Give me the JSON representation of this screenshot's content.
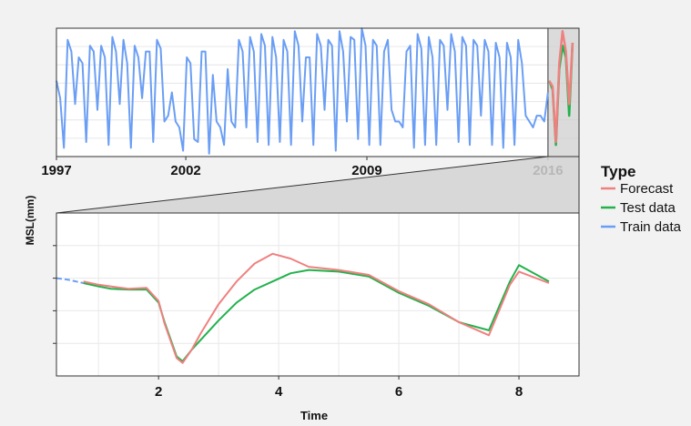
{
  "chart_data": [
    {
      "type": "line",
      "panel": "overview",
      "x_tick_labels": [
        "1997",
        "2002",
        "2009",
        "2016"
      ],
      "xlim": [
        1997,
        2017.2
      ],
      "ylim": [
        -1.1,
        1.1
      ],
      "highlight_range": [
        2016.0,
        2017.2
      ],
      "grid": true,
      "series": [
        {
          "name": "Train data",
          "color": "#6a9ef5",
          "x_start": 1997.0,
          "x_end": 2016.0,
          "values": [
            0.2,
            -0.1,
            -0.95,
            0.9,
            0.7,
            -0.2,
            0.6,
            0.5,
            -0.85,
            0.8,
            0.7,
            -0.3,
            0.8,
            0.6,
            -0.9,
            0.95,
            0.7,
            -0.2,
            0.9,
            0.5,
            -0.95,
            0.8,
            0.6,
            -0.1,
            0.7,
            0.7,
            -0.85,
            0.9,
            0.75,
            -0.5,
            -0.4,
            0.0,
            -0.5,
            -0.6,
            -1.0,
            0.6,
            0.5,
            -0.8,
            -0.85,
            0.7,
            0.7,
            -1.05,
            0.3,
            -0.5,
            -0.6,
            -0.9,
            0.4,
            -0.5,
            -0.6,
            0.9,
            0.7,
            -0.6,
            0.95,
            0.7,
            -0.85,
            1.0,
            0.8,
            -0.9,
            0.95,
            0.6,
            -0.85,
            0.9,
            0.7,
            -0.9,
            1.05,
            0.8,
            -0.5,
            0.6,
            0.6,
            -0.9,
            1.0,
            0.8,
            -0.3,
            0.9,
            0.8,
            -1.0,
            1.05,
            0.7,
            -0.5,
            0.95,
            0.9,
            -0.8,
            1.1,
            0.8,
            -0.9,
            0.9,
            0.8,
            -0.9,
            0.7,
            0.9,
            -0.3,
            -0.5,
            -0.5,
            -0.6,
            0.7,
            0.8,
            -0.95,
            1.0,
            0.75,
            -0.9,
            0.95,
            0.6,
            -0.9,
            0.9,
            0.8,
            -0.3,
            1.0,
            0.7,
            -0.85,
            0.95,
            0.8,
            -0.9,
            0.9,
            0.8,
            -0.4,
            0.9,
            0.7,
            -0.9,
            0.85,
            0.6,
            -0.95,
            0.85,
            0.6,
            -0.9,
            0.9,
            0.5,
            -0.4,
            -0.5,
            -0.6,
            -0.4,
            -0.4,
            -0.5,
            0.0
          ]
        },
        {
          "name": "Test data",
          "color": "#22b14c",
          "x_start": 2016.05,
          "x_end": 2016.95,
          "values": [
            0.2,
            0.05,
            -0.9,
            0.4,
            0.8,
            0.6,
            -0.4,
            0.85
          ]
        },
        {
          "name": "Forecast",
          "color": "#f08080",
          "x_start": 2016.05,
          "x_end": 2016.95,
          "values": [
            0.2,
            0.1,
            -0.85,
            0.5,
            1.05,
            0.7,
            -0.2,
            0.85
          ]
        }
      ]
    },
    {
      "type": "line",
      "panel": "zoom",
      "xlabel": "Time",
      "ylabel": "MSL(mm)",
      "x_tick_labels": [
        "2",
        "4",
        "6",
        "8"
      ],
      "x_ticks": [
        2,
        4,
        6,
        8
      ],
      "xlim": [
        0.3,
        9.0
      ],
      "ylim": [
        0.0,
        1.0
      ],
      "grid": true,
      "series": [
        {
          "name": "Train data",
          "color": "#6a9ef5",
          "x": [
            0.3,
            0.5,
            0.75
          ],
          "y": [
            0.6,
            0.59,
            0.57
          ]
        },
        {
          "name": "Test data",
          "color": "#22b14c",
          "x": [
            0.75,
            1.0,
            1.2,
            1.5,
            1.8,
            2.0,
            2.1,
            2.3,
            2.4,
            2.55,
            2.7,
            3.0,
            3.3,
            3.6,
            3.9,
            4.2,
            4.5,
            5.0,
            5.5,
            6.0,
            6.5,
            7.0,
            7.5,
            7.85,
            8.0,
            8.5
          ],
          "y": [
            0.57,
            0.55,
            0.535,
            0.53,
            0.53,
            0.45,
            0.33,
            0.12,
            0.09,
            0.16,
            0.22,
            0.34,
            0.45,
            0.53,
            0.58,
            0.63,
            0.65,
            0.64,
            0.61,
            0.51,
            0.43,
            0.33,
            0.28,
            0.58,
            0.68,
            0.58
          ]
        },
        {
          "name": "Forecast",
          "color": "#f08080",
          "x": [
            0.75,
            1.0,
            1.2,
            1.5,
            1.8,
            2.0,
            2.1,
            2.3,
            2.4,
            2.55,
            2.7,
            3.0,
            3.3,
            3.6,
            3.9,
            4.2,
            4.5,
            5.0,
            5.5,
            6.0,
            6.5,
            7.0,
            7.5,
            7.85,
            8.0,
            8.5
          ],
          "y": [
            0.58,
            0.56,
            0.55,
            0.535,
            0.54,
            0.46,
            0.32,
            0.11,
            0.08,
            0.16,
            0.26,
            0.44,
            0.58,
            0.69,
            0.75,
            0.72,
            0.67,
            0.65,
            0.62,
            0.52,
            0.44,
            0.33,
            0.25,
            0.56,
            0.64,
            0.57
          ]
        }
      ]
    }
  ],
  "legend": {
    "title": "Type",
    "placement": "right",
    "items": [
      {
        "label": "Forecast",
        "color": "#f08080"
      },
      {
        "label": "Test data",
        "color": "#22b14c"
      },
      {
        "label": "Train data",
        "color": "#6a9ef5"
      }
    ]
  }
}
